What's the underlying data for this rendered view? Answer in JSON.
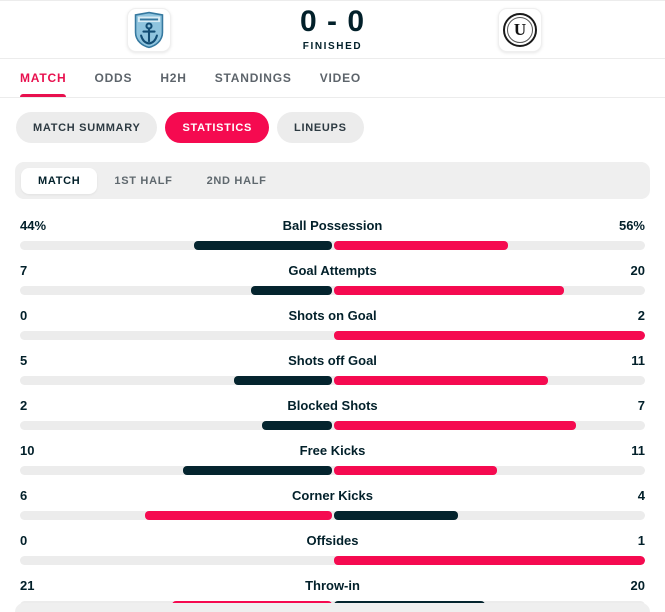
{
  "header": {
    "score": "0 - 0",
    "status": "FINISHED",
    "away_logo_letter": "U"
  },
  "nav_tabs": [
    {
      "label": "MATCH",
      "active": true
    },
    {
      "label": "ODDS",
      "active": false
    },
    {
      "label": "H2H",
      "active": false
    },
    {
      "label": "STANDINGS",
      "active": false
    },
    {
      "label": "VIDEO",
      "active": false
    }
  ],
  "sub_tabs": [
    {
      "label": "MATCH SUMMARY",
      "active": false
    },
    {
      "label": "STATISTICS",
      "active": true
    },
    {
      "label": "LINEUPS",
      "active": false
    }
  ],
  "period_tabs": [
    {
      "label": "MATCH",
      "active": true
    },
    {
      "label": "1ST HALF",
      "active": false
    },
    {
      "label": "2ND HALF",
      "active": false
    }
  ],
  "colors": {
    "accent": "#f50a50",
    "dark_bar": "#04242e",
    "track": "#ececec"
  },
  "statistics": {
    "rows": [
      {
        "label": "Ball Possession",
        "home": "44%",
        "away": "56%",
        "home_val": 44,
        "away_val": 56
      },
      {
        "label": "Goal Attempts",
        "home": "7",
        "away": "20",
        "home_val": 7,
        "away_val": 20
      },
      {
        "label": "Shots on Goal",
        "home": "0",
        "away": "2",
        "home_val": 0,
        "away_val": 2
      },
      {
        "label": "Shots off Goal",
        "home": "5",
        "away": "11",
        "home_val": 5,
        "away_val": 11
      },
      {
        "label": "Blocked Shots",
        "home": "2",
        "away": "7",
        "home_val": 2,
        "away_val": 7
      },
      {
        "label": "Free Kicks",
        "home": "10",
        "away": "11",
        "home_val": 10,
        "away_val": 11
      },
      {
        "label": "Corner Kicks",
        "home": "6",
        "away": "4",
        "home_val": 6,
        "away_val": 4
      },
      {
        "label": "Offsides",
        "home": "0",
        "away": "1",
        "home_val": 0,
        "away_val": 1
      },
      {
        "label": "Throw-in",
        "home": "21",
        "away": "20",
        "home_val": 21,
        "away_val": 20
      }
    ]
  }
}
